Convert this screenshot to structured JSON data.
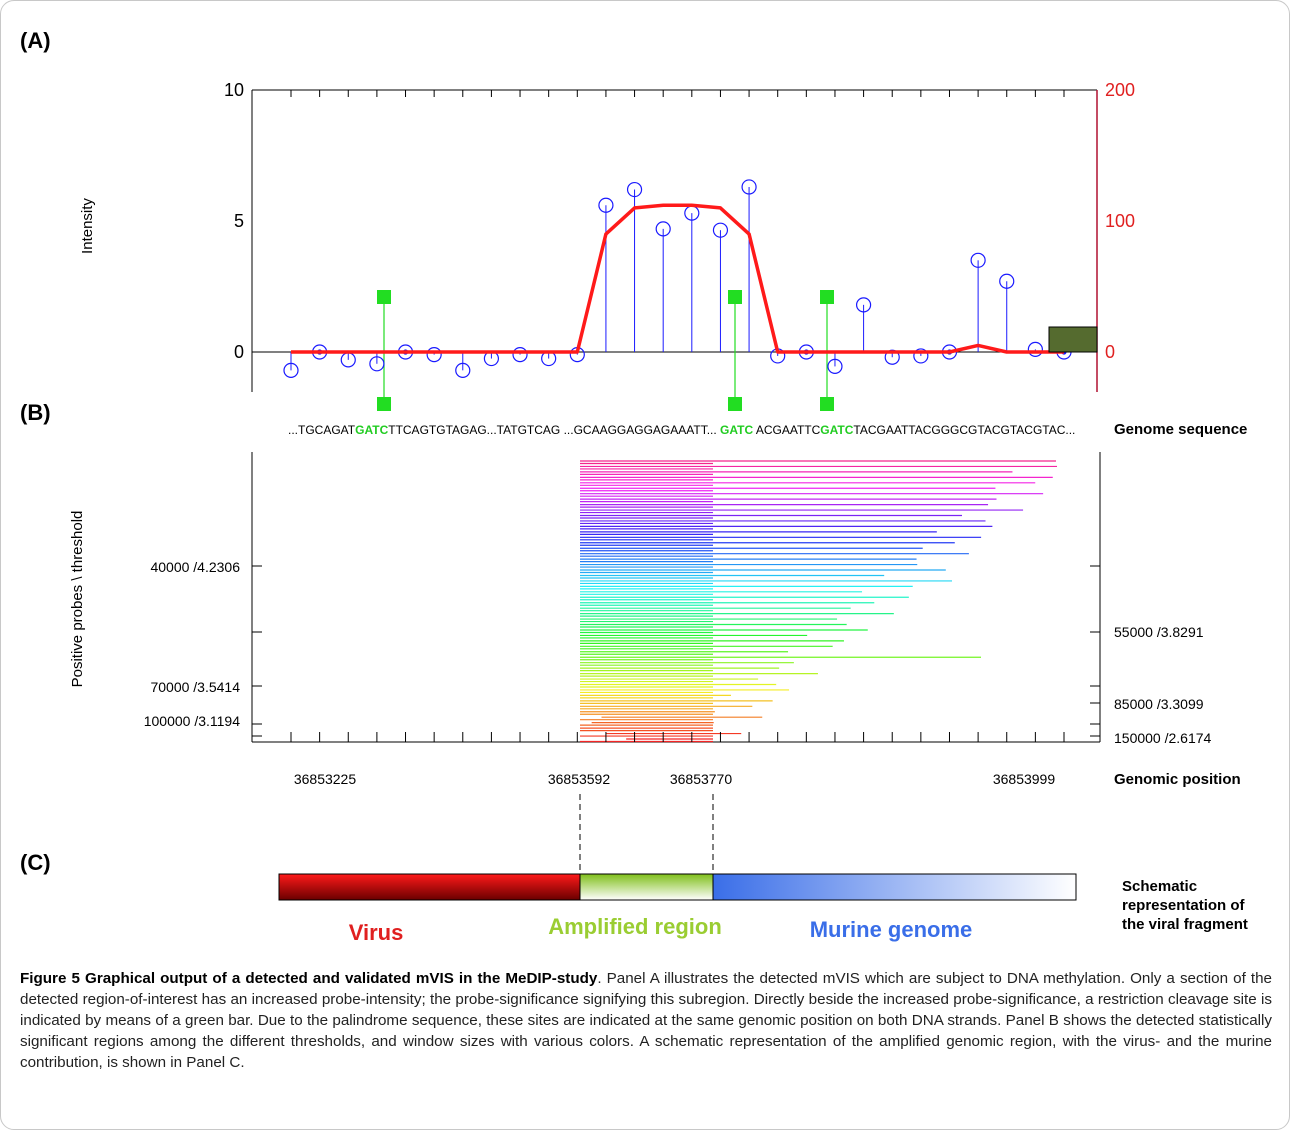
{
  "panels": {
    "a": "(A)",
    "b": "(B)",
    "c": "(C)"
  },
  "colors": {
    "probe": "#1a1aff",
    "smooth": "#ff1a1a",
    "restriction": "#22dd22",
    "box": "#556b2f",
    "virus": "#cc0000",
    "amplified": "#88c020",
    "murine": "#3a6ee8"
  },
  "chart_data": {
    "type": "line",
    "ylabel": "Intensity",
    "ylim": [
      0,
      10
    ],
    "y2lim": [
      0,
      200
    ],
    "yticks": [
      "0",
      "5",
      "10"
    ],
    "y2ticks": [
      "0",
      "100",
      "200"
    ],
    "probes": [
      {
        "y": -0.7,
        "filled": false
      },
      {
        "y": 0.0,
        "filled": true
      },
      {
        "y": -0.3,
        "filled": false
      },
      {
        "y": -0.45,
        "filled": false
      },
      {
        "y": 0.0,
        "filled": true
      },
      {
        "y": -0.1,
        "filled": false
      },
      {
        "y": -0.7,
        "filled": false
      },
      {
        "y": -0.25,
        "filled": false
      },
      {
        "y": -0.1,
        "filled": false
      },
      {
        "y": -0.25,
        "filled": false
      },
      {
        "y": -0.1,
        "filled": false
      },
      {
        "y": 5.6,
        "filled": false
      },
      {
        "y": 6.2,
        "filled": false
      },
      {
        "y": 4.7,
        "filled": false
      },
      {
        "y": 5.3,
        "filled": false
      },
      {
        "y": 4.65,
        "filled": false
      },
      {
        "y": 6.3,
        "filled": false
      },
      {
        "y": -0.15,
        "filled": false
      },
      {
        "y": 0.0,
        "filled": true
      },
      {
        "y": -0.55,
        "filled": false
      },
      {
        "y": 1.8,
        "filled": false
      },
      {
        "y": -0.2,
        "filled": false
      },
      {
        "y": -0.15,
        "filled": false
      },
      {
        "y": 0.0,
        "filled": true
      },
      {
        "y": 3.5,
        "filled": false
      },
      {
        "y": 2.7,
        "filled": false
      },
      {
        "y": 0.1,
        "filled": false
      },
      {
        "y": 0.0,
        "filled": true
      }
    ],
    "smooth_line": [
      0,
      0,
      0,
      0,
      0,
      0,
      0,
      0,
      0,
      0,
      0,
      90,
      110,
      112,
      112,
      110,
      90,
      0,
      0,
      0,
      0,
      0,
      0,
      0,
      5,
      0,
      0,
      0
    ]
  },
  "panel_b": {
    "sequence": {
      "segments": [
        {
          "text": "...TGCAGAT",
          "highlight": false
        },
        {
          "text": "GATC",
          "highlight": true
        },
        {
          "text": "TTCAGTGTAGAG...TATGTCAG ...GCAAGGAGGAGAAATT... ",
          "highlight": false
        },
        {
          "text": "GATC",
          "highlight": true
        },
        {
          "text": " ACGAATTC",
          "highlight": false
        },
        {
          "text": "GATC",
          "highlight": true
        },
        {
          "text": "TACGAATTACGGGCGTACGTACGTAC...",
          "highlight": false
        }
      ],
      "label": "Genome sequence"
    },
    "ylabel": "Positive probes \\ threshold",
    "left_ticks": [
      "40000 /4.2306",
      "70000 /3.5414",
      "100000 /3.1194"
    ],
    "right_ticks": [
      "55000 /3.8291",
      "85000 /3.3099",
      "150000 /2.6174"
    ],
    "positions": [
      "36853225",
      "36853592",
      "36853770",
      "36853999"
    ],
    "position_label": "Genomic position"
  },
  "panel_c": {
    "virus": "Virus",
    "amplified": "Amplified region",
    "murine": "Murine genome",
    "schematic_label": [
      "Schematic",
      "representation of",
      "the viral fragment"
    ]
  },
  "caption": {
    "title": "Figure 5 Graphical output of a detected and validated mVIS in the MeDIP-study",
    "body": ". Panel A illustrates the detected mVIS which are subject to DNA methylation. Only a section of the detected region-of-interest has an increased probe-intensity; the probe-significance signifying this subregion. Directly beside the increased probe-significance, a restriction cleavage site is indicated by means of a green bar. Due to the palindrome sequence, these sites are indicated at the same genomic position on both DNA strands. Panel B shows the detected statistically significant regions among the different thresholds, and window sizes with various colors. A schematic representation of the amplified genomic region, with the virus- and the murine contribution, is shown in Panel C."
  }
}
